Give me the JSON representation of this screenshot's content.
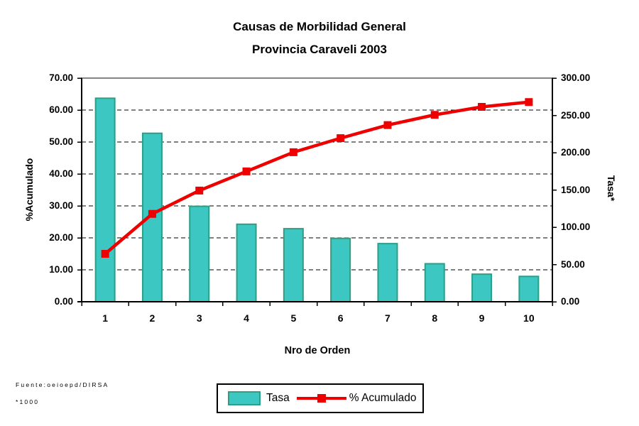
{
  "title": {
    "line1": "Causas de Morbilidad General",
    "line2": "Provincia Caraveli 2003"
  },
  "footer": {
    "source": "Fuente:oeioepd/DIRSA",
    "note": "*1000"
  },
  "legend": {
    "bar_label": "Tasa",
    "line_label": "% Acumulado"
  },
  "chart_data": {
    "type": "bar",
    "subtype": "pareto-combo-bar-line",
    "title": "Causas de Morbilidad General",
    "subtitle": "Provincia Caraveli 2003",
    "xlabel": "Nro de Orden",
    "categories": [
      "1",
      "2",
      "3",
      "4",
      "5",
      "6",
      "7",
      "8",
      "9",
      "10"
    ],
    "series": [
      {
        "name": "Tasa",
        "type": "bar",
        "axis": "right",
        "values": [
          273,
          226,
          128,
          104,
          98,
          85,
          78,
          51,
          37,
          34
        ],
        "fill": "#3CC7C2",
        "stroke": "#2E9E85"
      },
      {
        "name": "% Acumulado",
        "type": "line",
        "axis": "left",
        "values": [
          15.0,
          27.5,
          34.8,
          40.8,
          46.8,
          51.2,
          55.3,
          58.5,
          61.0,
          62.5
        ],
        "color": "#EE0000",
        "marker": "square"
      }
    ],
    "left_axis": {
      "title": "%Acumulado",
      "min": 0,
      "max": 70,
      "step": 10,
      "tick_labels": [
        "0.00",
        "10.00",
        "20.00",
        "30.00",
        "40.00",
        "50.00",
        "60.00",
        "70.00"
      ]
    },
    "right_axis": {
      "title": "Tasa*",
      "min": 0,
      "max": 300,
      "step": 50,
      "tick_labels": [
        "0.00",
        "50.00",
        "100.00",
        "150.00",
        "200.00",
        "250.00",
        "300.00"
      ]
    },
    "grid": "horizontal-dashed-black",
    "plot_border_top": "#858585",
    "axis_color": "#000000",
    "legend_position": "bottom-center",
    "background": "#FFFFFF"
  }
}
